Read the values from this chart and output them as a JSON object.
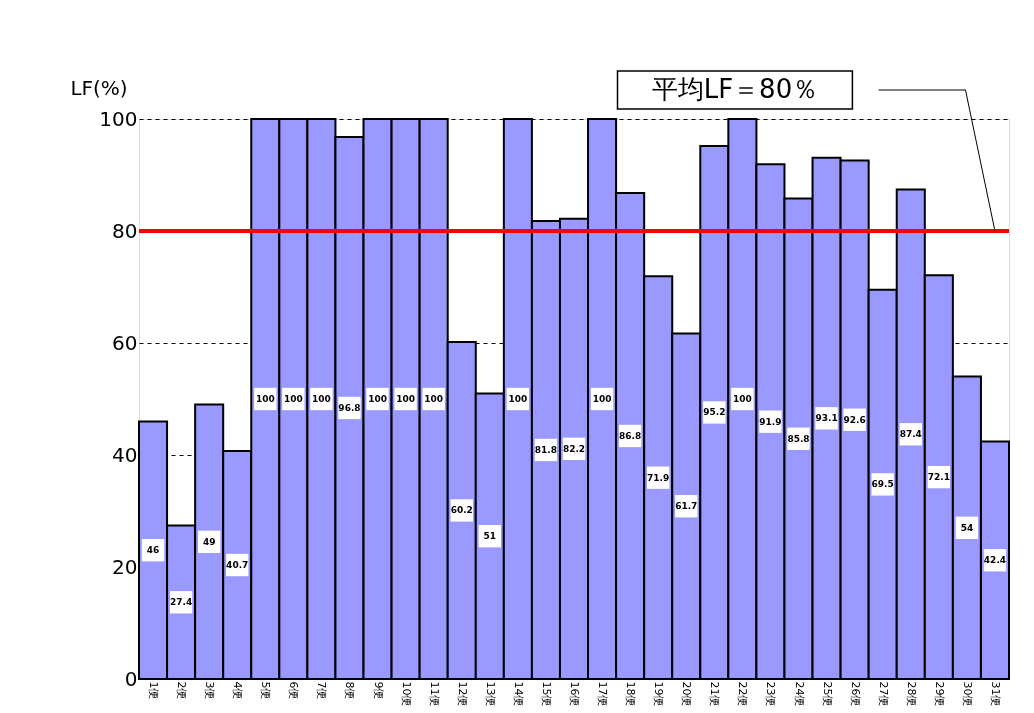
{
  "chart_data": {
    "type": "bar",
    "ylabel": "LF(%)",
    "categories": [
      "1便",
      "2便",
      "3便",
      "4便",
      "5便",
      "6便",
      "7便",
      "8便",
      "9便",
      "10便",
      "11便",
      "12便",
      "13便",
      "14便",
      "15便",
      "16便",
      "17便",
      "18便",
      "19便",
      "20便",
      "21便",
      "22便",
      "23便",
      "24便",
      "25便",
      "26便",
      "27便",
      "28便",
      "29便",
      "30便",
      "31便"
    ],
    "values": [
      46,
      27.4,
      49,
      40.7,
      100,
      100,
      100,
      96.8,
      100,
      100,
      100,
      60.2,
      51,
      100,
      81.8,
      82.2,
      100,
      86.8,
      71.9,
      61.7,
      95.2,
      100,
      91.9,
      85.8,
      93.1,
      92.6,
      69.5,
      87.4,
      72.1,
      54,
      42.4
    ],
    "color": "#9999ff",
    "ylim": [
      0,
      100
    ],
    "yticks": [
      0,
      20,
      40,
      60,
      80,
      100
    ],
    "grid": "y",
    "data_labels": true,
    "ref_lines": [
      {
        "axis": "y",
        "value": 80,
        "color": "#ff0000"
      }
    ],
    "annotations": [
      "平均LF＝80％"
    ]
  }
}
